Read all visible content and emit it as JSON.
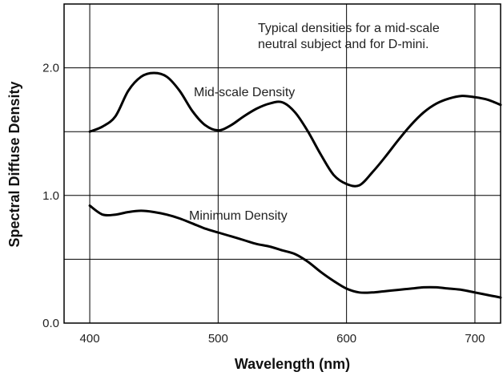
{
  "chart_data": {
    "type": "line",
    "title": "",
    "xlabel": "Wavelength (nm)",
    "ylabel": "Spectral Diffuse Density",
    "xlim": [
      380,
      720
    ],
    "ylim": [
      0.0,
      2.5
    ],
    "grid": true,
    "xticks": [
      400,
      500,
      600,
      700
    ],
    "xtick_labels": [
      "400",
      "500",
      "600",
      "700"
    ],
    "xgrid": [
      400,
      500,
      600,
      700
    ],
    "yticks": [
      0.0,
      1.0,
      2.0
    ],
    "ytick_labels": [
      "0.0",
      "1.0",
      "2.0"
    ],
    "ygrid": [
      0.5,
      1.0,
      1.5,
      2.0
    ],
    "annotation": [
      "Typical densities for a mid-scale",
      "neutral subject and for D-mini."
    ],
    "series": [
      {
        "name": "Mid-scale Density",
        "x": [
          400,
          410,
          420,
          430,
          440,
          450,
          460,
          470,
          480,
          490,
          500,
          510,
          520,
          530,
          540,
          550,
          560,
          570,
          580,
          590,
          600,
          610,
          620,
          630,
          640,
          650,
          660,
          670,
          680,
          690,
          700,
          710,
          720
        ],
        "y": [
          1.5,
          1.54,
          1.62,
          1.82,
          1.93,
          1.96,
          1.93,
          1.82,
          1.66,
          1.55,
          1.51,
          1.55,
          1.62,
          1.68,
          1.72,
          1.73,
          1.65,
          1.5,
          1.32,
          1.16,
          1.09,
          1.08,
          1.18,
          1.3,
          1.43,
          1.55,
          1.65,
          1.72,
          1.76,
          1.78,
          1.77,
          1.75,
          1.71
        ]
      },
      {
        "name": "Minimum Density",
        "x": [
          400,
          410,
          420,
          430,
          440,
          450,
          460,
          470,
          480,
          490,
          500,
          510,
          520,
          530,
          540,
          550,
          560,
          570,
          580,
          590,
          600,
          610,
          620,
          630,
          640,
          650,
          660,
          670,
          680,
          690,
          700,
          710,
          720
        ],
        "y": [
          0.92,
          0.85,
          0.85,
          0.87,
          0.88,
          0.87,
          0.85,
          0.82,
          0.78,
          0.74,
          0.71,
          0.68,
          0.65,
          0.62,
          0.6,
          0.57,
          0.54,
          0.48,
          0.4,
          0.33,
          0.27,
          0.24,
          0.24,
          0.25,
          0.26,
          0.27,
          0.28,
          0.28,
          0.27,
          0.26,
          0.24,
          0.22,
          0.2
        ]
      }
    ]
  }
}
